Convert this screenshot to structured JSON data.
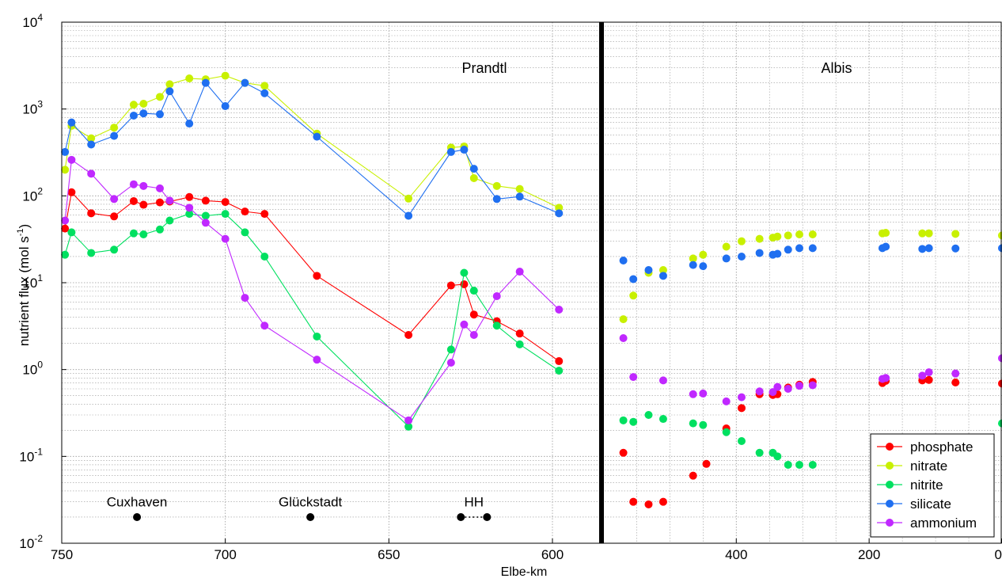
{
  "chart_data": {
    "type": "scatter",
    "ylabel": "nutrient flux (mol s",
    "ylabel_sup": "-1",
    "ylabel_close": ")",
    "xlabel": "Elbe-km",
    "yscale": "log",
    "ylim": [
      0.01,
      10000
    ],
    "grid": true,
    "legend_position": "bottom-right",
    "y_tick_base": "10",
    "y_tick_exponents": [
      "-2",
      "-1",
      "0",
      "1",
      "2",
      "3",
      "4"
    ],
    "panels": [
      {
        "name": "Prandtl",
        "xlim": [
          750,
          585
        ],
        "x_ticks": [
          "750",
          "700",
          "650",
          "600"
        ],
        "x_tick_values": [
          750,
          700,
          650,
          600
        ],
        "connected": true,
        "series": [
          {
            "name": "phosphate",
            "x": [
              749,
              747,
              741,
              734,
              728,
              725,
              720,
              717,
              711,
              706,
              700,
              694,
              688,
              672,
              644,
              631,
              627,
              624,
              617,
              610,
              598
            ],
            "y": [
              42,
              110,
              63,
              58,
              87,
              79,
              84,
              86,
              97,
              88,
              85,
              66,
              62,
              12,
              2.5,
              9.3,
              9.6,
              4.3,
              3.6,
              2.6,
              1.25
            ]
          },
          {
            "name": "nitrate",
            "x": [
              749,
              747,
              741,
              734,
              728,
              725,
              720,
              717,
              711,
              706,
              700,
              694,
              688,
              672,
              644,
              631,
              627,
              624,
              617,
              610,
              598
            ],
            "y": [
              200,
              640,
              460,
              610,
              1120,
              1150,
              1380,
              1930,
              2250,
              2200,
              2420,
              2000,
              1850,
              520,
              93,
              360,
              370,
              160,
              130,
              120,
              73
            ]
          },
          {
            "name": "nitrite",
            "x": [
              749,
              747,
              741,
              734,
              728,
              725,
              720,
              717,
              711,
              706,
              700,
              694,
              688,
              672,
              644,
              631,
              627,
              624,
              617,
              610,
              598
            ],
            "y": [
              21,
              38,
              22,
              24,
              37,
              36,
              41,
              52,
              62,
              59,
              62,
              38,
              20,
              2.4,
              0.22,
              1.7,
              13,
              8.1,
              3.2,
              1.95,
              0.97
            ]
          },
          {
            "name": "silicate",
            "x": [
              749,
              747,
              741,
              734,
              728,
              725,
              720,
              717,
              711,
              706,
              700,
              694,
              688,
              672,
              644,
              631,
              627,
              624,
              617,
              610,
              598
            ],
            "y": [
              320,
              700,
              390,
              490,
              840,
              890,
              870,
              1600,
              680,
              2000,
              1080,
              2000,
              1520,
              480,
              59,
              320,
              340,
              205,
              92,
              98,
              63
            ]
          },
          {
            "name": "ammonium",
            "x": [
              749,
              747,
              741,
              734,
              728,
              725,
              720,
              717,
              711,
              706,
              700,
              694,
              688,
              672,
              644,
              631,
              627,
              624,
              617,
              610,
              598
            ],
            "y": [
              52,
              260,
              180,
              92,
              136,
              130,
              122,
              88,
              73,
              49,
              32,
              6.7,
              3.2,
              1.3,
              0.26,
              1.2,
              3.3,
              2.5,
              7.0,
              13.4,
              4.9
            ]
          }
        ]
      },
      {
        "name": "Albis",
        "xlim": [
          585,
          0
        ],
        "x_ticks": [
          "400",
          "200",
          "0"
        ],
        "x_tick_values": [
          400,
          200,
          0
        ],
        "connected": false,
        "series": [
          {
            "name": "phosphate",
            "x": [
              570,
              555,
              532,
              510,
              465,
              445,
              415,
              392,
              365,
              345,
              338,
              322,
              305,
              285,
              180,
              175,
              120,
              110,
              70,
              0
            ],
            "y": [
              0.11,
              0.03,
              0.028,
              0.03,
              0.06,
              0.082,
              0.21,
              0.36,
              0.52,
              0.51,
              0.52,
              0.62,
              0.67,
              0.72,
              0.7,
              0.74,
              0.75,
              0.76,
              0.71,
              0.69
            ]
          },
          {
            "name": "nitrate",
            "x": [
              570,
              555,
              532,
              510,
              465,
              450,
              415,
              392,
              365,
              345,
              338,
              322,
              305,
              285,
              180,
              175,
              120,
              110,
              70,
              0
            ],
            "y": [
              3.8,
              7.1,
              13.0,
              14.0,
              19.0,
              21.0,
              26.0,
              30.0,
              32.0,
              33.0,
              34.0,
              35.0,
              36.0,
              36.0,
              37.0,
              37.5,
              37.0,
              37.0,
              36.5,
              35.0
            ]
          },
          {
            "name": "nitrite",
            "x": [
              570,
              555,
              532,
              510,
              465,
              450,
              415,
              392,
              365,
              345,
              338,
              322,
              305,
              285,
              0
            ],
            "y": [
              0.26,
              0.25,
              0.3,
              0.27,
              0.24,
              0.23,
              0.19,
              0.15,
              0.11,
              0.11,
              0.1,
              0.08,
              0.08,
              0.08,
              0.24
            ]
          },
          {
            "name": "silicate",
            "x": [
              570,
              555,
              532,
              510,
              465,
              450,
              415,
              392,
              365,
              345,
              338,
              322,
              305,
              285,
              180,
              175,
              120,
              110,
              70,
              0
            ],
            "y": [
              18,
              11,
              14,
              12,
              16,
              15.5,
              19,
              20,
              22,
              21,
              21.5,
              24,
              25,
              25,
              25,
              26,
              24.5,
              25,
              24.8,
              25
            ]
          },
          {
            "name": "ammonium",
            "x": [
              570,
              555,
              510,
              465,
              450,
              415,
              392,
              365,
              345,
              338,
              322,
              305,
              285,
              180,
              175,
              120,
              110,
              70,
              0
            ],
            "y": [
              2.3,
              0.82,
              0.75,
              0.52,
              0.53,
              0.43,
              0.48,
              0.56,
              0.55,
              0.63,
              0.6,
              0.65,
              0.66,
              0.78,
              0.8,
              0.85,
              0.93,
              0.9,
              1.35
            ]
          }
        ]
      }
    ],
    "series_colors": {
      "phosphate": "#ff0000",
      "nitrate": "#c8f000",
      "nitrite": "#00e060",
      "silicate": "#1f6ff0",
      "ammonium": "#c028ff"
    },
    "legend": [
      "phosphate",
      "nitrate",
      "nitrite",
      "silicate",
      "ammonium"
    ],
    "locations": [
      {
        "label": "Cuxhaven",
        "markers_km": [
          727
        ]
      },
      {
        "label": "Glückstadt",
        "markers_km": [
          674
        ]
      },
      {
        "label": "HH",
        "markers_km": [
          628,
          620
        ]
      }
    ],
    "location_label_y": 0.03,
    "location_marker_y": 0.02
  }
}
